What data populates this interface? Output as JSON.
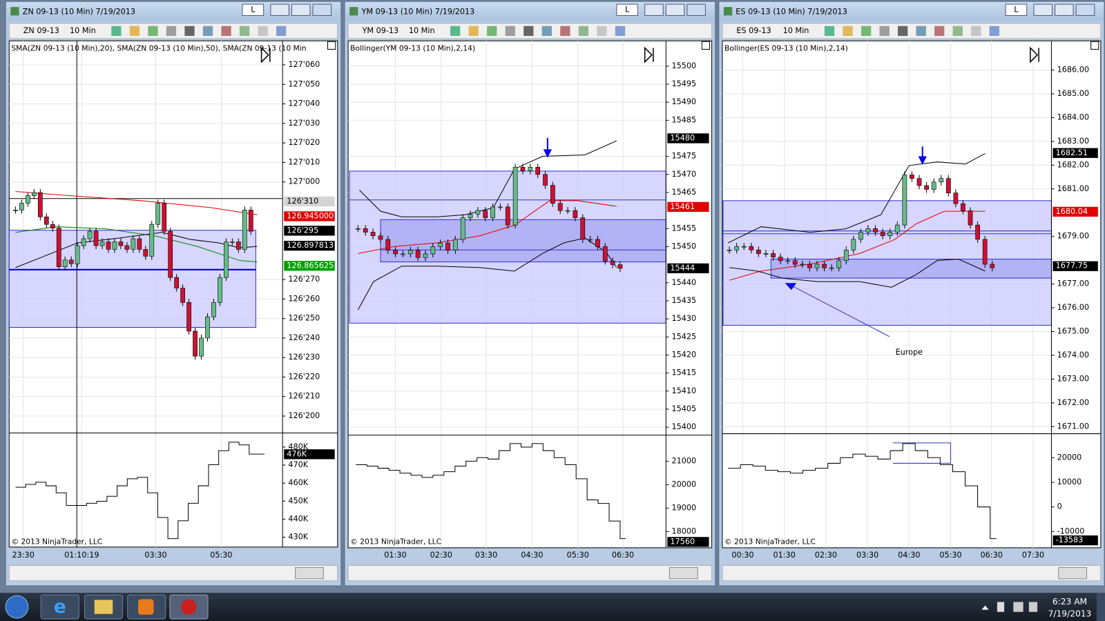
{
  "windows": [
    {
      "title": "ZN 09-13 (10 Min)  7/19/2013",
      "lock_label": "L",
      "instrument": "ZN 09-13",
      "interval": "10 Min",
      "indicator": "SMA(ZN 09-13 (10 Min),20), SMA(ZN 09-13 (10 Min),50), SMA(ZN 09-13 (10 Min",
      "ylim": [
        126.599,
        127.226
      ],
      "yticks": [
        {
          "value": 127.1875,
          "label": "127'060"
        },
        {
          "value": 127.15625,
          "label": "127'050"
        },
        {
          "value": 127.125,
          "label": "127'040"
        },
        {
          "value": 127.09375,
          "label": "127'030"
        },
        {
          "value": 127.0625,
          "label": "127'020"
        },
        {
          "value": 127.03125,
          "label": "127'010"
        },
        {
          "value": 127.0,
          "label": "127'000"
        },
        {
          "value": 126.84375,
          "label": "126'270"
        },
        {
          "value": 126.8125,
          "label": "126'260"
        },
        {
          "value": 126.78125,
          "label": "126'250"
        },
        {
          "value": 126.75,
          "label": "126'240"
        },
        {
          "value": 126.71875,
          "label": "126'230"
        },
        {
          "value": 126.6875,
          "label": "126'220"
        },
        {
          "value": 126.65625,
          "label": "126'210"
        },
        {
          "value": 126.625,
          "label": "126'200"
        }
      ],
      "flags": [
        {
          "value": 126.96875,
          "label": "126'310",
          "color": "#d4d4d4"
        },
        {
          "value": 126.945,
          "label": "126.945000",
          "color": "#e00000"
        },
        {
          "value": 126.921875,
          "label": "126'295",
          "color": "#000000"
        },
        {
          "value": 126.897813,
          "label": "126.897813",
          "color": "#000000"
        },
        {
          "value": 126.865625,
          "label": "126.865625",
          "color": "#00a000"
        }
      ],
      "closes": [
        126.955,
        126.966,
        126.978,
        126.983,
        126.944,
        126.932,
        126.926,
        126.864,
        126.875,
        126.869,
        126.898,
        126.909,
        126.921,
        126.898,
        126.904,
        126.892,
        126.904,
        126.898,
        126.892,
        126.909,
        126.892,
        126.881,
        126.932,
        126.966,
        126.921,
        126.847,
        126.83,
        126.807,
        126.761,
        126.721,
        126.75,
        126.784,
        126.807,
        126.847,
        126.904,
        126.904,
        126.892,
        126.955,
        126.921
      ],
      "vlim": [
        424.5,
        487.4
      ],
      "vticks": [
        {
          "value": 480,
          "label": "480K"
        },
        {
          "value": 470,
          "label": "470K"
        },
        {
          "value": 460,
          "label": "460K"
        },
        {
          "value": 450,
          "label": "450K"
        },
        {
          "value": 440,
          "label": "440K"
        },
        {
          "value": 430,
          "label": "430K"
        }
      ],
      "volume": [
        457.7,
        459.3,
        460.5,
        458.5,
        454.6,
        447.6,
        447.6,
        448.8,
        449.9,
        452.7,
        458.5,
        462.4,
        463.2,
        454.6,
        440.9,
        429.2,
        439.1,
        448.8,
        458.5,
        470.2,
        478.0,
        482.7,
        481.2,
        476.1,
        476.1
      ],
      "vflag": {
        "value": 476,
        "label": "476K",
        "color": "#000000"
      },
      "x_labels": [
        "23:30",
        "01:10:19",
        "03:30",
        "05:30"
      ],
      "copyright": "© 2013 NinjaTrader, LLC"
    },
    {
      "title": "YM 09-13 (10 Min)  7/19/2013",
      "lock_label": "L",
      "instrument": "YM 09-13",
      "interval": "10 Min",
      "indicator": "Bollinger(YM 09-13 (10 Min),2,14)",
      "ylim": [
        15398,
        15507
      ],
      "yticks": [
        15500,
        15495,
        15490,
        15485,
        15475,
        15470,
        15465,
        15455,
        15450,
        15440,
        15435,
        15430,
        15425,
        15420,
        15415,
        15410,
        15405,
        15400
      ],
      "flags": [
        {
          "value": 15480,
          "label": "15480",
          "color": "#000000"
        },
        {
          "value": 15461,
          "label": "15461",
          "color": "#e00000"
        },
        {
          "value": 15444,
          "label": "15444",
          "color": "#000000"
        }
      ],
      "closes": [
        15455,
        15454,
        15453,
        15452,
        15449,
        15448,
        15448,
        15449,
        15447,
        15448,
        15450,
        15451,
        15449,
        15452,
        15458,
        15459,
        15460,
        15458,
        15461,
        15461,
        15456,
        15472,
        15471,
        15472,
        15470,
        15467,
        15462,
        15460,
        15460,
        15458,
        15452,
        15452,
        15450,
        15446,
        15445,
        15444
      ],
      "vlim": [
        17310,
        22080
      ],
      "vticks": [
        21000,
        20000,
        19000,
        18000
      ],
      "volume": [
        20850,
        20790,
        20700,
        20610,
        20490,
        20400,
        20310,
        20400,
        20550,
        20790,
        21000,
        21150,
        21090,
        21450,
        21750,
        21600,
        21750,
        21450,
        21150,
        20850,
        20250,
        19350,
        19200,
        18450,
        17700
      ],
      "vflag": {
        "value": 17560,
        "label": "17560",
        "color": "#000000"
      },
      "x_labels": [
        "01:30",
        "02:30",
        "03:30",
        "04:30",
        "05:30",
        "06:30"
      ],
      "copyright": "© 2013 NinjaTrader, LLC"
    },
    {
      "title": "ES 09-13 (10 Min)  7/19/2013",
      "lock_label": "L",
      "instrument": "ES 09-13",
      "interval": "10 Min",
      "indicator": "Bollinger(ES 09-13 (10 Min),2,14)",
      "ylim": [
        1670.73,
        1687.23
      ],
      "yticks": [
        {
          "value": 1686,
          "label": "1686.00"
        },
        {
          "value": 1685,
          "label": "1685.00"
        },
        {
          "value": 1684,
          "label": "1684.00"
        },
        {
          "value": 1683,
          "label": "1683.00"
        },
        {
          "value": 1682,
          "label": "1682.00"
        },
        {
          "value": 1681,
          "label": "1681.00"
        },
        {
          "value": 1679,
          "label": "1679.00"
        },
        {
          "value": 1677,
          "label": "1677.00"
        },
        {
          "value": 1676,
          "label": "1676.00"
        },
        {
          "value": 1675,
          "label": "1675.00"
        },
        {
          "value": 1674,
          "label": "1674.00"
        },
        {
          "value": 1673,
          "label": "1673.00"
        },
        {
          "value": 1672,
          "label": "1672.00"
        },
        {
          "value": 1671,
          "label": "1671.00"
        }
      ],
      "flags": [
        {
          "value": 1682.51,
          "label": "1682.51",
          "color": "#000000"
        },
        {
          "value": 1680.04,
          "label": "1680.04",
          "color": "#e00000"
        },
        {
          "value": 1677.75,
          "label": "1677.75",
          "color": "#000000"
        }
      ],
      "closes": [
        1678.43,
        1678.58,
        1678.58,
        1678.43,
        1678.28,
        1678.28,
        1678.13,
        1677.98,
        1677.98,
        1677.83,
        1677.83,
        1677.68,
        1677.83,
        1677.68,
        1677.68,
        1677.98,
        1678.43,
        1678.88,
        1679.18,
        1679.33,
        1679.18,
        1679.03,
        1679.18,
        1679.48,
        1681.59,
        1681.44,
        1681.14,
        1680.98,
        1681.29,
        1681.44,
        1680.83,
        1680.38,
        1680.08,
        1679.48,
        1678.88,
        1677.83,
        1677.68
      ],
      "vlim": [
        -16590,
        29460
      ],
      "vticks": [
        20000,
        10000,
        0,
        -10000
      ],
      "volume": [
        15730,
        17160,
        16590,
        14870,
        14300,
        13730,
        14870,
        15730,
        17730,
        20020,
        21450,
        20590,
        19450,
        22880,
        25740,
        22880,
        20020,
        17160,
        14300,
        8580,
        0,
        -12870
      ],
      "vflag": {
        "value": -13583,
        "label": "-13583",
        "color": "#000000"
      },
      "x_labels": [
        "00:30",
        "01:30",
        "02:30",
        "03:30",
        "04:30",
        "05:30",
        "06:30",
        "07:30"
      ],
      "copyright": "© 2013 NinjaTrader, LLC"
    }
  ],
  "annotation": "Europe",
  "taskbar": {
    "time": "6:23 AM",
    "date": "7/19/2013"
  }
}
